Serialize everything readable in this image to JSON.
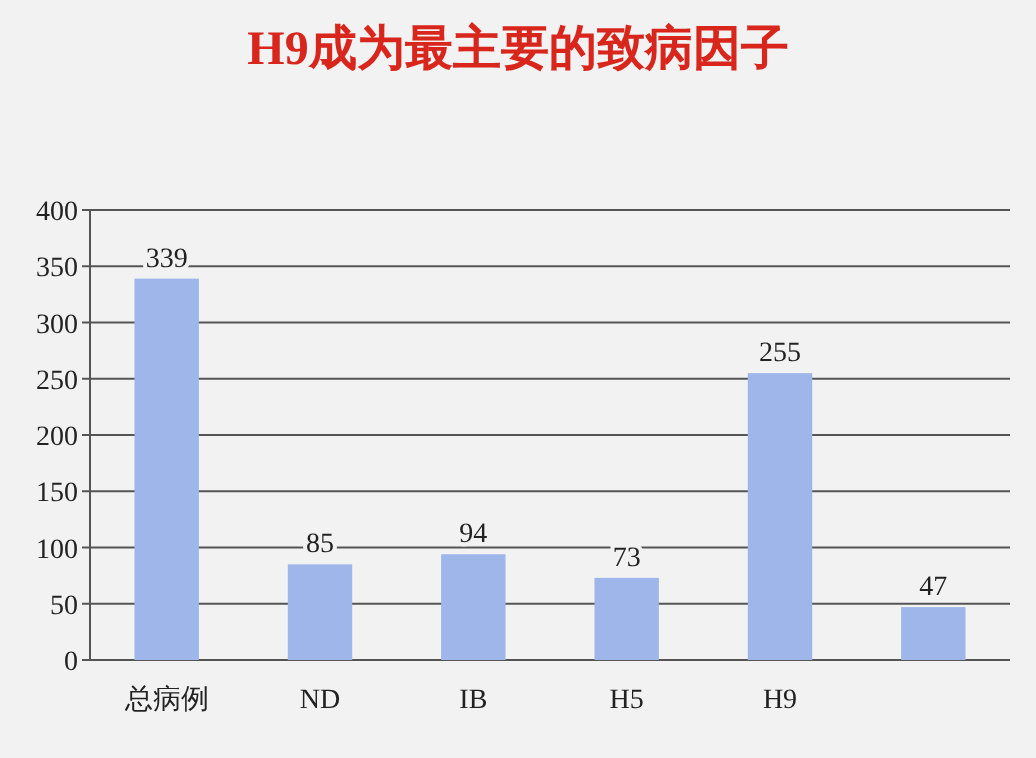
{
  "chart_data": {
    "type": "bar",
    "title": "H9成为最主要的致病因子",
    "categories": [
      "总病例",
      "ND",
      "IB",
      "H5",
      "H9",
      null
    ],
    "values": [
      339,
      85,
      94,
      73,
      255,
      47
    ],
    "color": "#9fb6ea",
    "ylim": [
      0,
      400
    ],
    "yticks": [
      0,
      50,
      100,
      150,
      200,
      250,
      300,
      350,
      400
    ],
    "grid": "y",
    "data_labels": true
  }
}
